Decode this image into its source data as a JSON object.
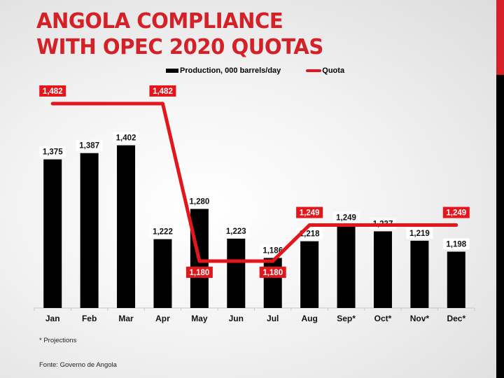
{
  "slide": {
    "title_line1": "ANGOLA COMPLIANCE",
    "title_line2": "WITH OPEC 2020 QUOTAS",
    "footnote": "* Projections",
    "source": "Fonte: Governo de Angola",
    "colors": {
      "title": "#d42128",
      "bars": "#000000",
      "quota_line": "#e3161c",
      "accent_red": "#d42128",
      "accent_black": "#000000"
    }
  },
  "legend": {
    "production": "Production, 000 barrels/day",
    "quota": "Quota"
  },
  "chart_data": {
    "type": "bar",
    "title": "Angola Compliance with OPEC 2020 Quotas",
    "xlabel": "",
    "ylabel": "",
    "categories": [
      "Jan",
      "Feb",
      "Mar",
      "Apr",
      "May",
      "Jun",
      "Jul",
      "Aug",
      "Sep*",
      "Oct*",
      "Nov*",
      "Dec*"
    ],
    "series": [
      {
        "name": "Production, 000 barrels/day",
        "type": "bar",
        "values": [
          1375,
          1387,
          1402,
          1222,
          1280,
          1223,
          1186,
          1218,
          1249,
          1237,
          1219,
          1198
        ]
      },
      {
        "name": "Quota",
        "type": "line",
        "values": [
          1482,
          1482,
          1482,
          1482,
          1180,
          1180,
          1180,
          1249,
          1249,
          1249,
          1249,
          1249
        ]
      }
    ],
    "quota_labels": [
      {
        "index": 0,
        "text": "1,482"
      },
      {
        "index": 3,
        "text": "1,482"
      },
      {
        "index": 4,
        "text": "1,180"
      },
      {
        "index": 6,
        "text": "1,180"
      },
      {
        "index": 7,
        "text": "1,249"
      },
      {
        "index": 11,
        "text": "1,249"
      }
    ],
    "value_labels": [
      "1,375",
      "1,387",
      "1,402",
      "1,222",
      "1,280",
      "1,223",
      "1,186",
      "1,218",
      "1,249",
      "1,237",
      "1,219",
      "1,198"
    ],
    "ylim": [
      1090,
      1500
    ],
    "grid": false,
    "legend_position": "top",
    "annotations": [
      "* Projections"
    ]
  }
}
